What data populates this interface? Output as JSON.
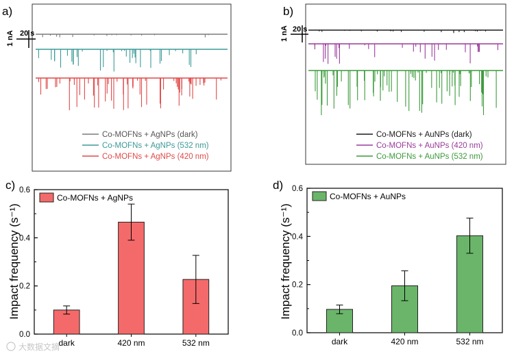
{
  "panel_labels": [
    "a)",
    "b)",
    "c)",
    "d)"
  ],
  "watermark": "大数据文摘",
  "chart_data": [
    {
      "type": "line",
      "panel": "a)",
      "scale_bar": {
        "current": "1 nA",
        "time": "20 s"
      },
      "series": [
        {
          "name": "Co-MOFNs + AgNPs (dark)",
          "color": "#7a7a7a"
        },
        {
          "name": "Co-MOFNs + AgNPs (532 nm)",
          "color": "#3a9a96"
        },
        {
          "name": "Co-MOFNs + AgNPs (420 nm)",
          "color": "#e04848"
        }
      ]
    },
    {
      "type": "line",
      "panel": "b)",
      "scale_bar": {
        "current": "1 nA",
        "time": "20 s"
      },
      "series": [
        {
          "name": "Co-MOFNs + AuNPs (dark)",
          "color": "#1a1a1a"
        },
        {
          "name": "Co-MOFNs + AuNPs (420 nm)",
          "color": "#9a3a9a"
        },
        {
          "name": "Co-MOFNs + AuNPs (532 nm)",
          "color": "#3a9a3a"
        }
      ]
    },
    {
      "type": "bar",
      "panel": "c)",
      "categories": [
        "dark",
        "420 nm",
        "532 nm"
      ],
      "values": [
        0.1,
        0.465,
        0.227
      ],
      "errors": [
        0.017,
        0.075,
        0.1
      ],
      "ylabel": "Impact frequency (s⁻¹)",
      "ylim": [
        0,
        0.6
      ],
      "yticks": [
        "0.0",
        "0.2",
        "0.4",
        "0.6"
      ],
      "legend": "Co-MOFNs + AgNPs",
      "color": "#f46a6a"
    },
    {
      "type": "bar",
      "panel": "d)",
      "categories": [
        "dark",
        "420 nm",
        "532 nm"
      ],
      "values": [
        0.097,
        0.195,
        0.403
      ],
      "errors": [
        0.018,
        0.062,
        0.073
      ],
      "ylabel": "Impact frequency (s⁻¹)",
      "ylim": [
        0,
        0.6
      ],
      "yticks": [
        "0.0",
        "0.2",
        "0.4",
        "0.6"
      ],
      "legend": "Co-MOFNs + AuNPs",
      "color": "#6ab56a"
    }
  ]
}
